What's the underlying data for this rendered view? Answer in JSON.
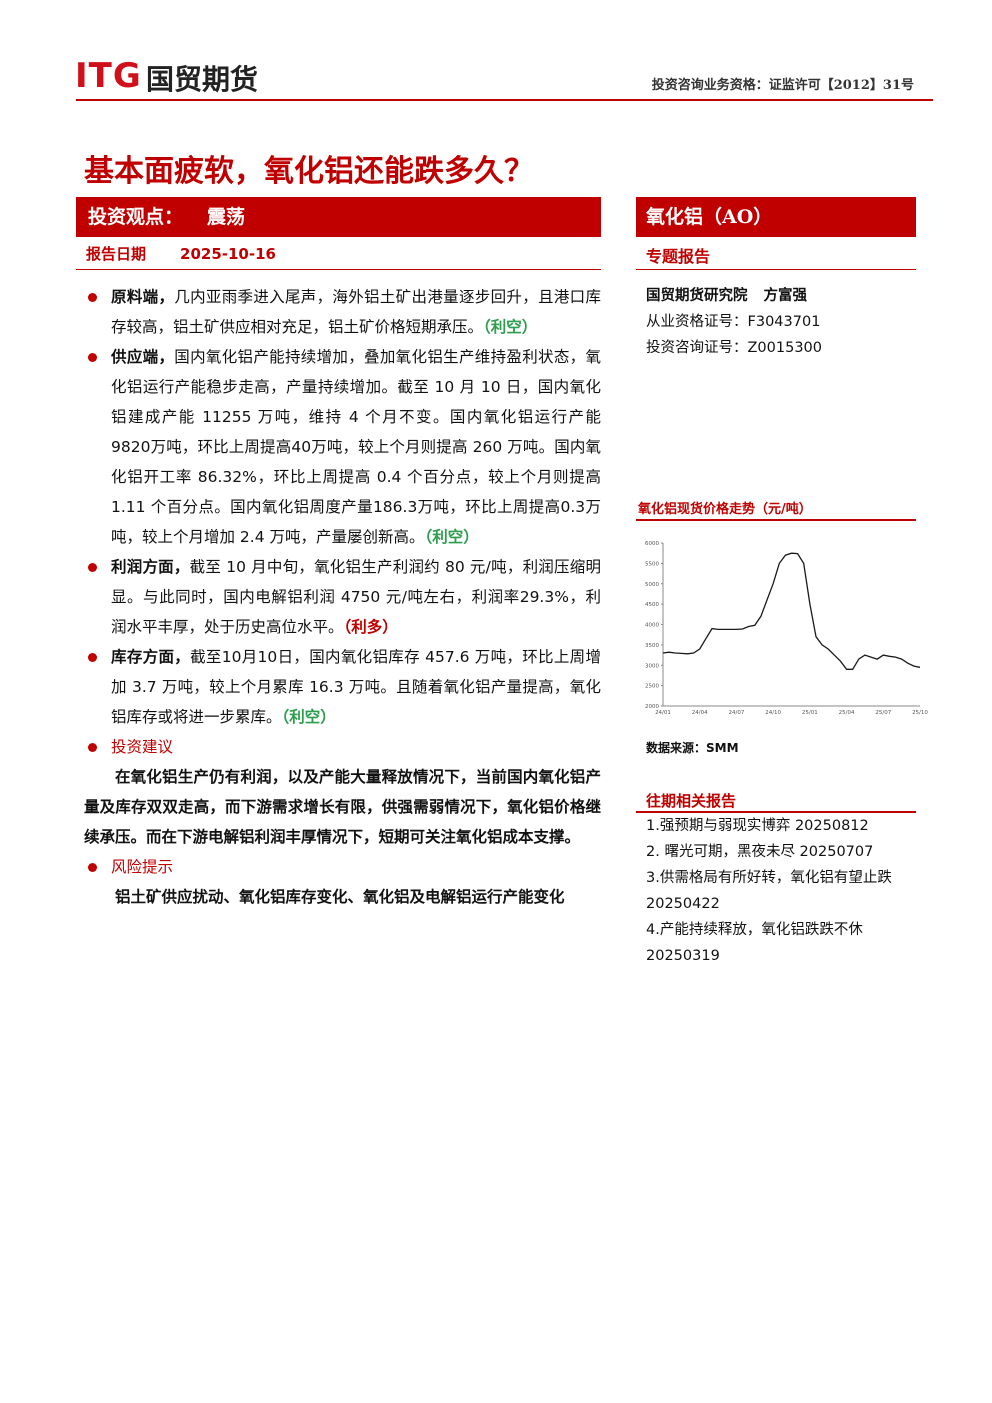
{
  "header": {
    "logo": "ITG",
    "logo_cn": "国贸期货",
    "qualification": "投资咨询业务资格：证监许可【2012】31号"
  },
  "title": "基本面疲软，氧化铝还能跌多久？",
  "view": {
    "label": "投资观点：",
    "value": "震荡"
  },
  "report_date": {
    "label": "报告日期",
    "value": "2025-10-16"
  },
  "sections": [
    {
      "heading": "原料端，",
      "text": "几内亚雨季进入尾声，海外铝土矿出港量逐步回升，且港口库存较高，铝土矿供应相对充足，铝土矿价格短期承压。",
      "tag": "（利空）",
      "tag_color": "#2e9e4e"
    },
    {
      "heading": "供应端，",
      "text": "国内氧化铝产能持续增加，叠加氧化铝生产维持盈利状态，氧化铝运行产能稳步走高，产量持续增加。截至 10 月 10 日，国内氧化铝建成产能 11255 万吨，维持 4 个月不变。国内氧化铝运行产能9820万吨，环比上周提高40万吨，较上个月则提高 260 万吨。国内氧化铝开工率 86.32%，环比上周提高 0.4 个百分点，较上个月则提高 1.11 个百分点。国内氧化铝周度产量186.3万吨，环比上周提高0.3万吨，较上个月增加 2.4 万吨，产量屡创新高。",
      "tag": "（利空）",
      "tag_color": "#2e9e4e"
    },
    {
      "heading": "利润方面，",
      "text": "截至 10 月中旬，氧化铝生产利润约 80 元/吨，利润压缩明显。与此同时，国内电解铝利润 4750 元/吨左右，利润率29.3%，利润水平丰厚，处于历史高位水平。",
      "tag": "（利多）",
      "tag_color": "#c00000"
    },
    {
      "heading": "库存方面，",
      "text": "截至10月10日，国内氧化铝库存 457.6 万吨，环比上周增加 3.7 万吨，较上个月累库 16.3 万吨。且随着氧化铝产量提高，氧化铝库存或将进一步累库。",
      "tag": "（利空）",
      "tag_color": "#2e9e4e"
    }
  ],
  "advice": {
    "heading": "投资建议",
    "text": "在氧化铝生产仍有利润，以及产能大量释放情况下，当前国内氧化铝产量及库存双双走高，而下游需求增长有限，供强需弱情况下，氧化铝价格继续承压。而在下游电解铝利润丰厚情况下，短期可关注氧化铝成本支撑。"
  },
  "risk": {
    "heading": "风险提示",
    "text": "铝土矿供应扰动、氧化铝库存变化、氧化铝及电解铝运行产能变化"
  },
  "sidebar": {
    "product": "氧化铝（AO）",
    "report_type": "专题报告",
    "institute": "国贸期货研究院",
    "analyst": "方富强",
    "certs": [
      {
        "label": "从业资格证号：",
        "value": "F3043701"
      },
      {
        "label": "投资咨询证号：",
        "value": "Z0015300"
      }
    ]
  },
  "chart_data": {
    "type": "line",
    "title": "氧化铝现货价格走势（元/吨）",
    "categories": [
      "24/01",
      null,
      null,
      null,
      null,
      null,
      "24/04",
      null,
      null,
      null,
      null,
      null,
      "24/07",
      null,
      null,
      null,
      null,
      null,
      "24/10",
      null,
      null,
      null,
      null,
      null,
      "25/01",
      null,
      null,
      null,
      null,
      null,
      "25/04",
      null,
      null,
      null,
      null,
      null,
      "25/07",
      null,
      null,
      null,
      null,
      null,
      "25/10"
    ],
    "series": [
      {
        "name": "氧化铝现货价格",
        "color": "#1a1a1a",
        "values": [
          3300,
          3320,
          3300,
          3290,
          3280,
          3300,
          3400,
          3650,
          3900,
          3880,
          3880,
          3880,
          3880,
          3890,
          3950,
          3980,
          4200,
          4600,
          5000,
          5500,
          5700,
          5750,
          5740,
          5500,
          4500,
          3700,
          3500,
          3400,
          3250,
          3100,
          2900,
          2900,
          3150,
          3250,
          3200,
          3150,
          3250,
          3220,
          3200,
          3150,
          3050,
          2980,
          2950
        ]
      }
    ],
    "ylim": [
      2000,
      6000
    ],
    "yticks": [
      2000,
      2500,
      3000,
      3500,
      4000,
      4500,
      5000,
      5500,
      6000
    ],
    "grid": false
  },
  "source": "数据来源：SMM",
  "related": {
    "heading": "往期相关报告",
    "items": [
      "1.强预期与弱现实博弈 20250812",
      "2. 曙光可期，黑夜未尽 20250707",
      "3.供需格局有所好转，氧化铝有望止跌 20250422",
      "4.产能持续释放，氧化铝跌跌不休 20250319"
    ]
  }
}
